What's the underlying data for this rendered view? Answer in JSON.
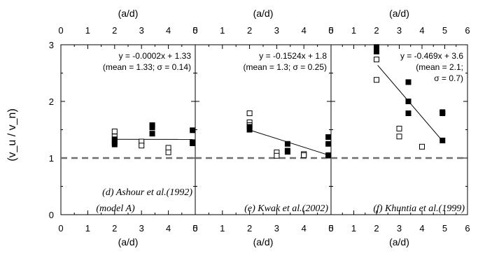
{
  "chart_data": {
    "type": "scatter",
    "shared": {
      "ylabel": "(v_u / v_n)",
      "xlabel": "(a/d)",
      "ylim": [
        0,
        3
      ],
      "yticks": [
        "0",
        "1",
        "2",
        "3"
      ],
      "reference_line_y": 1,
      "marker_legend": {
        "open": "open square",
        "filled": "filled square"
      }
    },
    "panels": [
      {
        "id": "d",
        "caption_line1": "(d) Ashour et al.(1992)",
        "caption_line2": "(model A)",
        "equation": "y = -0.0002x + 1.33",
        "stats": "(mean = 1.33; σ = 0.14)",
        "xlim": [
          0,
          5
        ],
        "xticks": [
          "0",
          "1",
          "2",
          "3",
          "4",
          "5"
        ],
        "fit": {
          "slope": -0.0002,
          "intercept": 1.33,
          "x_range": [
            2,
            4.9
          ]
        },
        "open": [
          [
            2,
            1.47
          ],
          [
            2,
            1.38
          ],
          [
            2,
            1.28
          ],
          [
            3,
            1.29
          ],
          [
            3,
            1.22
          ],
          [
            4,
            1.18
          ],
          [
            4,
            1.1
          ]
        ],
        "filled": [
          [
            2,
            1.33
          ],
          [
            2,
            1.24
          ],
          [
            3.4,
            1.58
          ],
          [
            3.4,
            1.54
          ],
          [
            3.4,
            1.43
          ],
          [
            4.9,
            1.49
          ],
          [
            4.9,
            1.28
          ],
          [
            4.9,
            1.26
          ]
        ]
      },
      {
        "id": "e",
        "caption_line1": "(e) Kwak et al.(2002)",
        "caption_line2": "",
        "equation": "y = -0.1524x + 1.8",
        "stats": "(mean = 1.3; σ = 0.25)",
        "xlim": [
          0,
          5
        ],
        "xticks": [
          "0",
          "1",
          "2",
          "3",
          "4",
          "5"
        ],
        "fit": {
          "slope": -0.1524,
          "intercept": 1.8,
          "x_range": [
            2,
            4.9
          ]
        },
        "open": [
          [
            2,
            1.79
          ],
          [
            2,
            1.63
          ],
          [
            2,
            1.58
          ],
          [
            3,
            1.1
          ],
          [
            3,
            1.04
          ],
          [
            4,
            1.07
          ],
          [
            4,
            1.05
          ]
        ],
        "filled": [
          [
            2,
            1.55
          ],
          [
            2,
            1.5
          ],
          [
            3.4,
            1.25
          ],
          [
            3.4,
            1.13
          ],
          [
            3.4,
            1.11
          ],
          [
            4.9,
            1.37
          ],
          [
            4.9,
            1.25
          ],
          [
            4.9,
            1.05
          ]
        ]
      },
      {
        "id": "f",
        "caption_line1": "(f) Khuntia et al.(1999)",
        "caption_line2": "",
        "equation": "y = -0.469x + 3.6",
        "stats_line1": "(mean = 2.1;",
        "stats_line2": "σ = 0.7)",
        "xlim": [
          0,
          6
        ],
        "xticks": [
          "0",
          "1",
          "2",
          "3",
          "4",
          "5",
          "6"
        ],
        "fit": {
          "slope": -0.469,
          "intercept": 3.6,
          "x_range": [
            2.05,
            4.9
          ]
        },
        "open": [
          [
            2,
            2.74
          ],
          [
            2,
            2.38
          ],
          [
            3,
            1.52
          ],
          [
            3,
            1.38
          ],
          [
            4,
            1.2
          ]
        ],
        "filled": [
          [
            2,
            2.96
          ],
          [
            2,
            2.88
          ],
          [
            3.4,
            2.34
          ],
          [
            3.4,
            2.0
          ],
          [
            3.4,
            1.79
          ],
          [
            4.9,
            1.81
          ],
          [
            4.9,
            1.79
          ],
          [
            4.9,
            1.31
          ]
        ]
      }
    ]
  }
}
